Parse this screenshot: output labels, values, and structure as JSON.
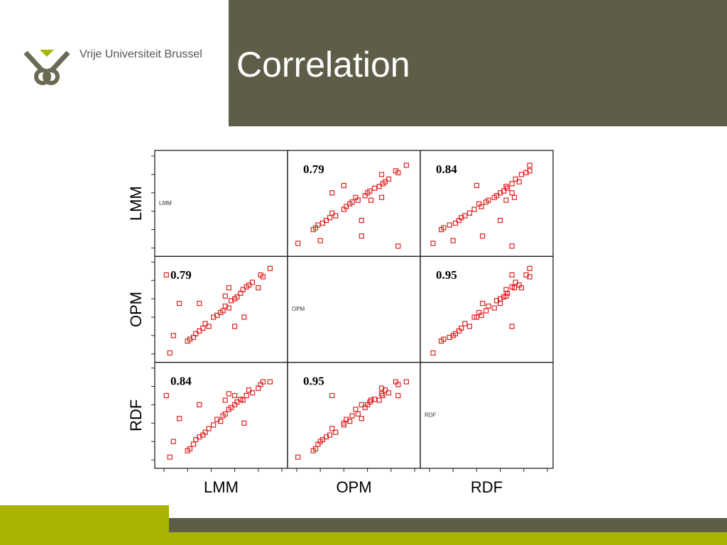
{
  "header": {
    "logo_text": "Vrije Universiteit Brussel",
    "title": "Correlation"
  },
  "chart_data": {
    "type": "scatter_matrix",
    "variables": [
      {
        "name": "LMM",
        "values": [
          2,
          5,
          8,
          13,
          20,
          22,
          25,
          27,
          30,
          33,
          35,
          38,
          30,
          42,
          45,
          48,
          50,
          52,
          55,
          57,
          52,
          60,
          62,
          65,
          67,
          55,
          70,
          72,
          75,
          80,
          82,
          84,
          90,
          68,
          60
        ]
      },
      {
        "name": "OPM",
        "values": [
          86,
          1,
          20,
          55,
          14,
          16,
          18,
          22,
          25,
          28,
          33,
          30,
          55,
          40,
          42,
          45,
          47,
          52,
          50,
          58,
          63,
          60,
          62,
          66,
          70,
          72,
          73,
          75,
          78,
          72,
          86,
          84,
          93,
          40,
          30
        ]
      },
      {
        "name": "RDF",
        "values": [
          70,
          3,
          20,
          45,
          10,
          12,
          17,
          22,
          25,
          27,
          30,
          34,
          60,
          38,
          44,
          42,
          48,
          50,
          55,
          57,
          65,
          60,
          63,
          66,
          65,
          72,
          70,
          76,
          73,
          78,
          82,
          85,
          85,
          40,
          70
        ]
      }
    ],
    "color": "#e02020",
    "lim": [
      -3,
      100
    ],
    "ticks": [
      0,
      20,
      40,
      60,
      80,
      100
    ],
    "correlations": [
      [
        null,
        0.79,
        0.84
      ],
      [
        0.79,
        null,
        0.95
      ],
      [
        0.84,
        0.95,
        null
      ]
    ]
  }
}
